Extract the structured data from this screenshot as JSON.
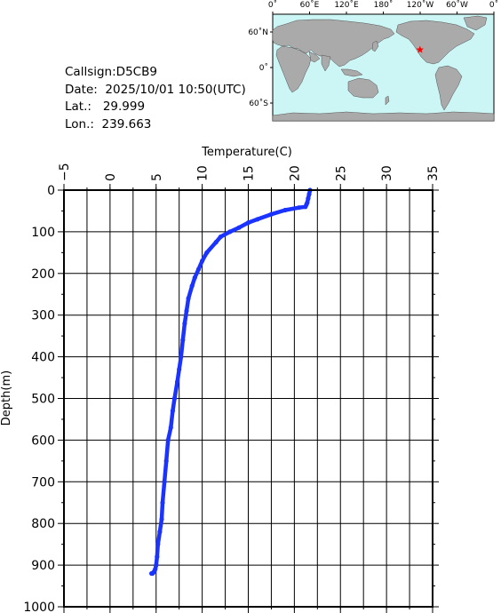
{
  "station": {
    "callsign_label": "Callsign:",
    "callsign": "D5CB9",
    "date_label": "Date:",
    "date": "2025/10/01 10:50(UTC)",
    "lat_label": "Lat.:",
    "lat": "29.999",
    "lon_label": "Lon.:",
    "lon": "239.663"
  },
  "map": {
    "top_labels": [
      "0˚",
      "60˚E",
      "120˚E",
      "180˚",
      "120˚W",
      "60˚W",
      "0˚"
    ],
    "side_labels": [
      "60˚N",
      "0˚",
      "60˚S"
    ],
    "ocean_color": "#ccf5f5",
    "land_color": "#aaaaaa",
    "marker_color": "#ff0000",
    "marker": {
      "lon": 239.663,
      "lat": 29.999
    }
  },
  "chart_data": {
    "type": "line",
    "xlabel": "Temperature(C)",
    "ylabel": "Depth(m)",
    "xlim": [
      -5,
      35
    ],
    "ylim": [
      1000,
      0
    ],
    "x_ticks": [
      -5,
      0,
      5,
      10,
      15,
      20,
      25,
      30,
      35
    ],
    "y_ticks": [
      0,
      100,
      200,
      300,
      400,
      500,
      600,
      700,
      800,
      900,
      1000
    ],
    "grid": true,
    "line_color": "#1a33ff",
    "series": [
      {
        "x": [
          21.7,
          21.6,
          21.5,
          21.4,
          21.3,
          21.2,
          20.5,
          19.0,
          17.5,
          16.0,
          15.0,
          14.0,
          13.0,
          12.0,
          11.5,
          10.5,
          10.0,
          9.6,
          9.2,
          8.9,
          8.5,
          8.3,
          8.1,
          7.9,
          7.7,
          7.5,
          7.3,
          7.0,
          6.8,
          6.6,
          6.3,
          6.1,
          5.9,
          5.7,
          5.6,
          5.4,
          5.2,
          5.1,
          5.0,
          4.9,
          4.8,
          4.7,
          4.6,
          4.5
        ],
        "y": [
          0,
          10,
          20,
          30,
          35,
          40,
          42,
          48,
          58,
          70,
          78,
          90,
          100,
          112,
          125,
          150,
          170,
          190,
          210,
          230,
          260,
          290,
          320,
          360,
          400,
          430,
          460,
          500,
          530,
          570,
          600,
          650,
          700,
          750,
          790,
          820,
          850,
          880,
          900,
          910,
          915,
          918,
          920,
          920
        ]
      }
    ]
  }
}
